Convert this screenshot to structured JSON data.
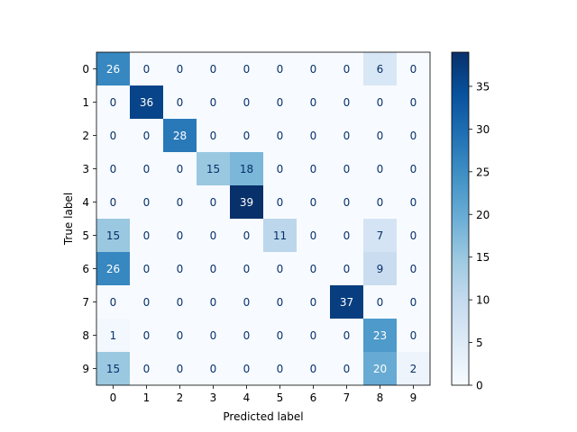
{
  "chart_data": {
    "type": "heatmap",
    "title": "",
    "xlabel": "Predicted label",
    "ylabel": "True label",
    "x_labels": [
      "0",
      "1",
      "2",
      "3",
      "4",
      "5",
      "6",
      "7",
      "8",
      "9"
    ],
    "y_labels": [
      "0",
      "1",
      "2",
      "3",
      "4",
      "5",
      "6",
      "7",
      "8",
      "9"
    ],
    "matrix": [
      [
        26,
        0,
        0,
        0,
        0,
        0,
        0,
        0,
        6,
        0
      ],
      [
        0,
        36,
        0,
        0,
        0,
        0,
        0,
        0,
        0,
        0
      ],
      [
        0,
        0,
        28,
        0,
        0,
        0,
        0,
        0,
        0,
        0
      ],
      [
        0,
        0,
        0,
        15,
        18,
        0,
        0,
        0,
        0,
        0
      ],
      [
        0,
        0,
        0,
        0,
        39,
        0,
        0,
        0,
        0,
        0
      ],
      [
        15,
        0,
        0,
        0,
        0,
        11,
        0,
        0,
        7,
        0
      ],
      [
        26,
        0,
        0,
        0,
        0,
        0,
        0,
        0,
        9,
        0
      ],
      [
        0,
        0,
        0,
        0,
        0,
        0,
        0,
        37,
        0,
        0
      ],
      [
        1,
        0,
        0,
        0,
        0,
        0,
        0,
        0,
        23,
        0
      ],
      [
        15,
        0,
        0,
        0,
        0,
        0,
        0,
        0,
        20,
        2
      ]
    ],
    "colormap": "Blues",
    "color_range": [
      0,
      39
    ],
    "colorbar_ticks": [
      "0",
      "5",
      "10",
      "15",
      "20",
      "25",
      "30",
      "35"
    ],
    "grid": false,
    "colorbar_position": "right"
  }
}
